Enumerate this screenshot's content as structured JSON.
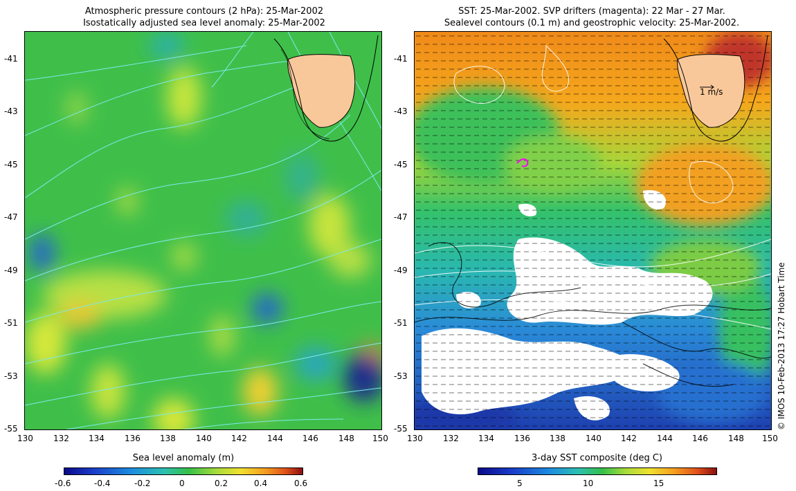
{
  "left_panel": {
    "title_line1": "Atmospheric pressure contours (2 hPa): 25-Mar-2002",
    "title_line2": "Isostatically adjusted sea level anomaly: 25-Mar-2002",
    "x_ticks": [
      "130",
      "132",
      "134",
      "136",
      "138",
      "140",
      "142",
      "144",
      "146",
      "148",
      "150"
    ],
    "y_ticks": [
      "-41",
      "-43",
      "-45",
      "-47",
      "-49",
      "-51",
      "-53",
      "-55"
    ],
    "colorbar_title": "Sea level anomaly (m)",
    "colorbar_ticks": [
      "-0.6",
      "-0.4",
      "-0.2",
      "0",
      "0.2",
      "0.4",
      "0.6"
    ],
    "colorbar_range": [
      -0.6,
      0.6
    ]
  },
  "right_panel": {
    "title_line1": "SST: 25-Mar-2002. SVP drifters (magenta): 22 Mar - 27 Mar.",
    "title_line2": "Sealevel contours (0.1 m) and geostrophic velocity: 25-Mar-2002.",
    "x_ticks": [
      "130",
      "132",
      "134",
      "136",
      "138",
      "140",
      "142",
      "144",
      "146",
      "148",
      "150"
    ],
    "y_ticks": [
      "-41",
      "-43",
      "-45",
      "-47",
      "-49",
      "-51",
      "-53",
      "-55"
    ],
    "scale_arrow_label": "1 m/s",
    "colorbar_title": "3-day SST composite (deg C)",
    "colorbar_ticks": [
      "5",
      "10",
      "15"
    ]
  },
  "map_extent": {
    "lon": [
      130,
      150
    ],
    "lat": [
      -55,
      -40
    ]
  },
  "credit": "© IMOS 10-Feb-2013 17:27 Hobart Time",
  "colors": {
    "land": "#f9c89a",
    "ocean_mid": "#2fb84a",
    "contour_left": "#7fe8ec",
    "contour_right": "#ffffff",
    "drifter": "#ff00ff"
  }
}
